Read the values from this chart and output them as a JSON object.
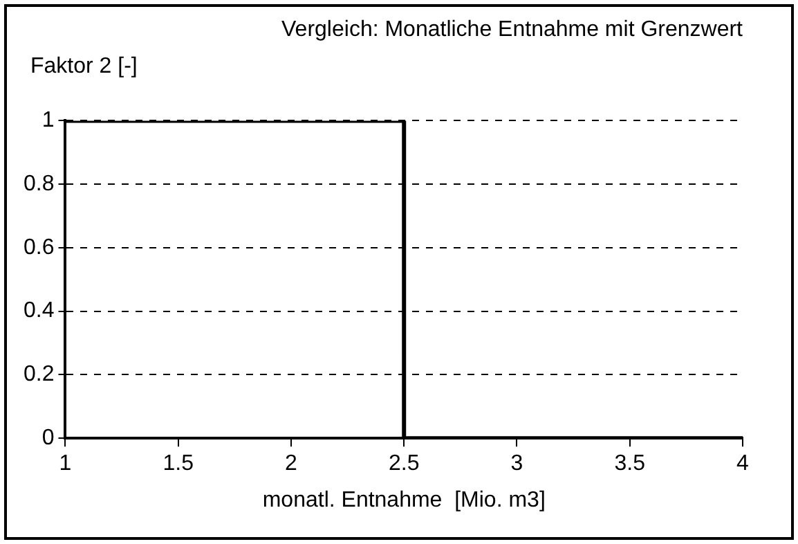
{
  "chart_data": {
    "type": "line",
    "title": "Vergleich: Monatliche Entnahme mit Grenzwert",
    "ylabel": "Faktor 2 [-]",
    "xlabel": "monatl. Entnahme  [Mio. m3]",
    "x": [
      1,
      2.5,
      2.5,
      4
    ],
    "series": [
      {
        "color": "#000000",
        "values": [
          1,
          1,
          0,
          0
        ]
      }
    ],
    "xlim": [
      1,
      4
    ],
    "xticks": [
      1,
      1.5,
      2,
      2.5,
      3,
      3.5,
      4
    ],
    "ylim": [
      0,
      1
    ],
    "yticks": [
      0,
      0.2,
      0.4,
      0.6,
      0.8,
      1
    ],
    "grid": "y",
    "legend": false,
    "marker": "none",
    "line_style": "solid"
  }
}
